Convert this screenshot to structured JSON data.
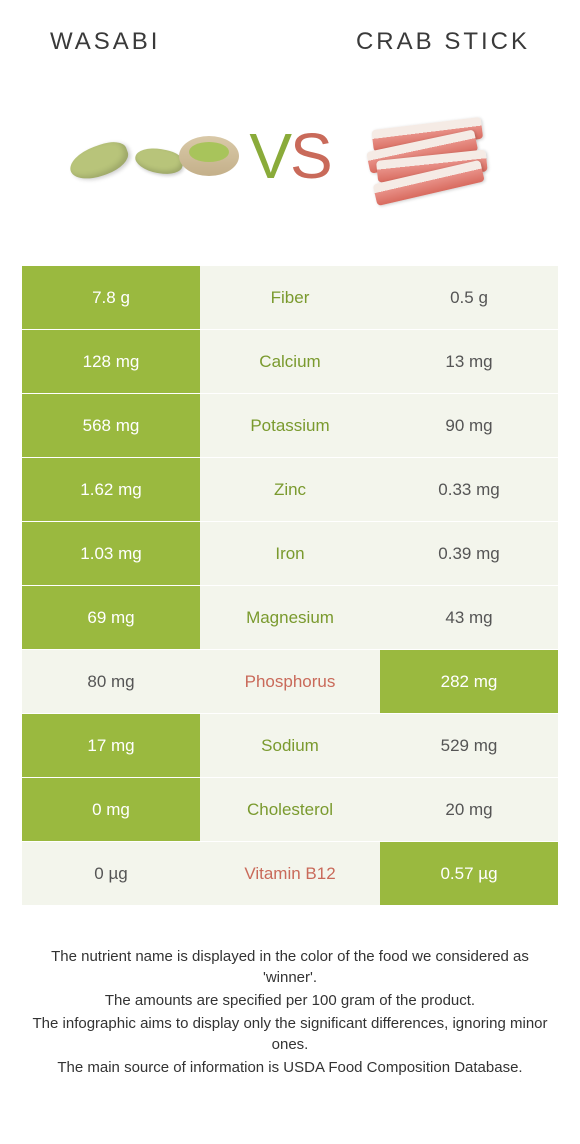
{
  "header": {
    "left_title": "Wasabi",
    "right_title": "Crab stick"
  },
  "vs": {
    "v": "V",
    "s": "S"
  },
  "colors": {
    "green": "#9ab93f",
    "light": "#f3f5ec",
    "name_green": "#7a9a2e",
    "name_red": "#c96a5a",
    "white": "#ffffff"
  },
  "rows": [
    {
      "label": "Fiber",
      "left": "7.8 g",
      "right": "0.5 g",
      "winner": "left"
    },
    {
      "label": "Calcium",
      "left": "128 mg",
      "right": "13 mg",
      "winner": "left"
    },
    {
      "label": "Potassium",
      "left": "568 mg",
      "right": "90 mg",
      "winner": "left"
    },
    {
      "label": "Zinc",
      "left": "1.62 mg",
      "right": "0.33 mg",
      "winner": "left"
    },
    {
      "label": "Iron",
      "left": "1.03 mg",
      "right": "0.39 mg",
      "winner": "left"
    },
    {
      "label": "Magnesium",
      "left": "69 mg",
      "right": "43 mg",
      "winner": "left"
    },
    {
      "label": "Phosphorus",
      "left": "80 mg",
      "right": "282 mg",
      "winner": "right"
    },
    {
      "label": "Sodium",
      "left": "17 mg",
      "right": "529 mg",
      "winner": "left"
    },
    {
      "label": "Cholesterol",
      "left": "0 mg",
      "right": "20 mg",
      "winner": "left"
    },
    {
      "label": "Vitamin B12",
      "left": "0 µg",
      "right": "0.57 µg",
      "winner": "right"
    }
  ],
  "footer": {
    "line1": "The nutrient name is displayed in the color of the food we considered as 'winner'.",
    "line2": "The amounts are specified per 100 gram of the product.",
    "line3": "The infographic aims to display only the significant differences, ignoring minor ones.",
    "line4": "The main source of information is USDA Food Composition Database."
  }
}
